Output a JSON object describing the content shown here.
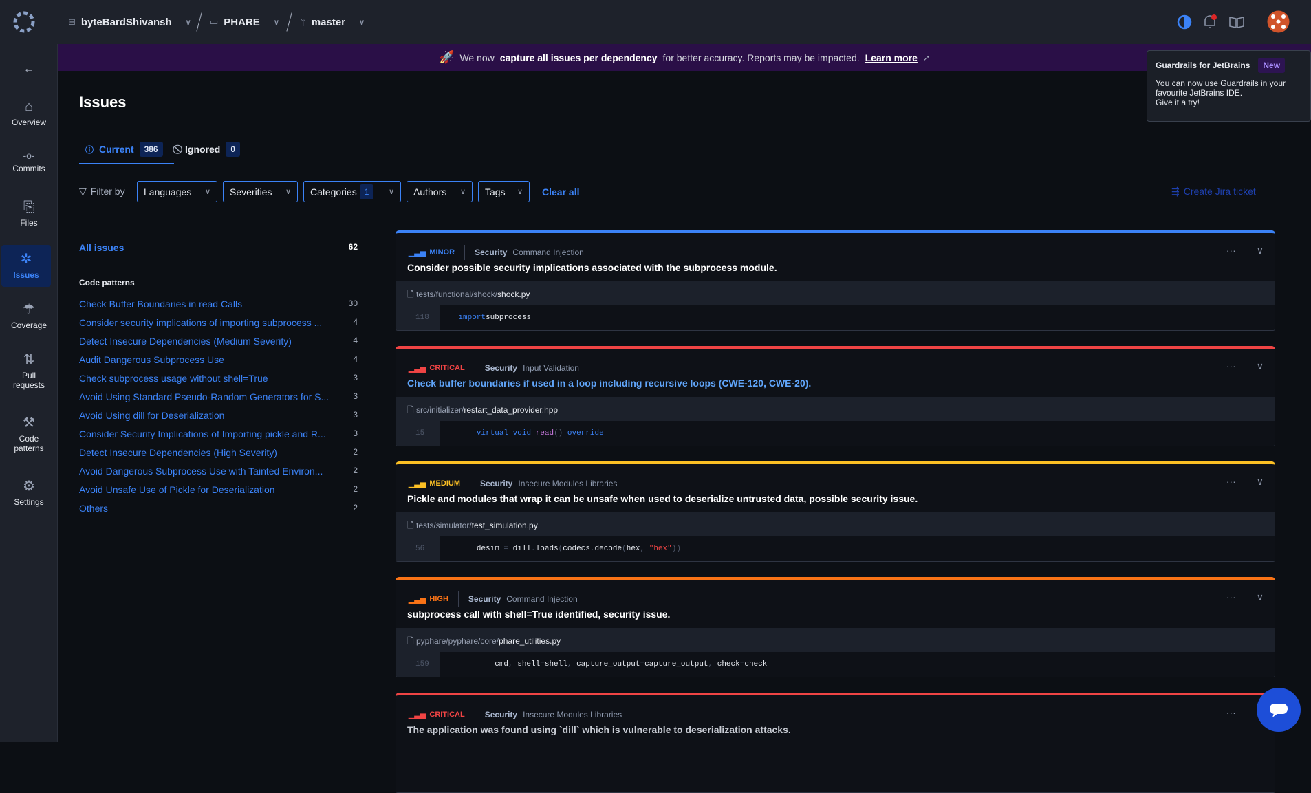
{
  "topbar": {
    "org": "byteBardShivansh",
    "repo": "PHARE",
    "branch": "master",
    "icons": [
      "logo-icon",
      "briefcase-icon",
      "folder-icon",
      "branch-icon",
      "theme-toggle-icon",
      "bell-icon",
      "book-icon",
      "avatar"
    ]
  },
  "sidebar": {
    "items": [
      {
        "label": "Overview",
        "icon": "⌂"
      },
      {
        "label": "Commits",
        "icon": "-o-"
      },
      {
        "label": "Files",
        "icon": "⎘"
      },
      {
        "label": "Issues",
        "icon": "✲"
      },
      {
        "label": "Coverage",
        "icon": "☂"
      },
      {
        "label": "Pull",
        "label2": "requests",
        "icon": "⇅"
      },
      {
        "label": "Code",
        "label2": "patterns",
        "icon": "⚒"
      },
      {
        "label": "Settings",
        "icon": "⚙"
      }
    ]
  },
  "banner": {
    "pre": "We now",
    "bold": "capture all issues per dependency",
    "post": "for better accuracy. Reports may be impacted.",
    "link": "Learn more"
  },
  "tooltip": {
    "title": "Guardrails for JetBrains",
    "badge": "New",
    "line1": "You can now use Guardrails in your",
    "line2": "favourite JetBrains IDE.",
    "line3": "Give it a try!"
  },
  "page": {
    "title": "Issues"
  },
  "tabs": [
    {
      "label": "Current",
      "count": "386"
    },
    {
      "label": "Ignored",
      "count": "0"
    }
  ],
  "filters": {
    "label": "Filter by",
    "items": [
      "Languages",
      "Severities",
      "Categories",
      "Authors",
      "Tags"
    ],
    "categories_count": "1",
    "clear": "Clear all",
    "jira": "Create Jira ticket"
  },
  "list": {
    "all_label": "All issues",
    "all_count": "62",
    "section": "Code patterns",
    "items": [
      {
        "label": "Check Buffer Boundaries in read Calls",
        "count": "30"
      },
      {
        "label": "Consider security implications of importing subprocess ...",
        "count": "4"
      },
      {
        "label": "Detect Insecure Dependencies (Medium Severity)",
        "count": "4"
      },
      {
        "label": "Audit Dangerous Subprocess Use",
        "count": "4"
      },
      {
        "label": "Check subprocess usage without shell=True",
        "count": "3"
      },
      {
        "label": "Avoid Using Standard Pseudo-Random Generators for S...",
        "count": "3"
      },
      {
        "label": "Avoid Using dill for Deserialization",
        "count": "3"
      },
      {
        "label": "Consider Security Implications of Importing pickle and R...",
        "count": "3"
      },
      {
        "label": "Detect Insecure Dependencies (High Severity)",
        "count": "2"
      },
      {
        "label": "Avoid Dangerous Subprocess Use with Tainted Environ...",
        "count": "2"
      },
      {
        "label": "Avoid Unsafe Use of Pickle for Deserialization",
        "count": "2"
      },
      {
        "label": "Others",
        "count": "2"
      }
    ]
  },
  "colors": {
    "minor": "#3b82f6",
    "critical": "#ef4444",
    "medium": "#fbbf24",
    "high": "#f97316",
    "accent": "#3b82f6",
    "banner": "#2a0f47"
  },
  "issues": [
    {
      "severity": "MINOR",
      "color": "#3b82f6",
      "category": "Security",
      "subcategory": "Command Injection",
      "title": "Consider possible security implications associated with the subprocess module.",
      "title_color": "#ffffff",
      "path": "tests/functional/shock/",
      "file": "shock.py",
      "line": "118",
      "code": [
        [
          "kw",
          "import"
        ],
        [
          "",
          "subprocess"
        ]
      ],
      "indent": "    "
    },
    {
      "severity": "CRITICAL",
      "color": "#ef4444",
      "category": "Security",
      "subcategory": "Input Validation",
      "title": "Check buffer boundaries if used in a loop including recursive loops (CWE-120, CWE-20).",
      "title_color": "#60a5fa",
      "path": "src/initializer/",
      "file": "restart_data_provider.hpp",
      "line": "15",
      "code": [
        [
          "kw",
          "virtual"
        ],
        [
          "",
          " "
        ],
        [
          "kw",
          "void"
        ],
        [
          "",
          " "
        ],
        [
          "fn",
          "read"
        ],
        [
          "pun",
          "()"
        ],
        [
          "",
          " "
        ],
        [
          "kw",
          "override"
        ]
      ],
      "indent": "        "
    },
    {
      "severity": "MEDIUM",
      "color": "#fbbf24",
      "category": "Security",
      "subcategory": "Insecure Modules Libraries",
      "title": "Pickle and modules that wrap it can be unsafe when used to deserialize untrusted data, possible security issue.",
      "title_color": "#ffffff",
      "path": "tests/simulator/",
      "file": "test_simulation.py",
      "line": "56",
      "code": [
        [
          "",
          "desim "
        ],
        [
          "pun",
          "="
        ],
        [
          "",
          " dill"
        ],
        [
          "pun",
          "."
        ],
        [
          "",
          "loads"
        ],
        [
          "pun",
          "("
        ],
        [
          "",
          "codecs"
        ],
        [
          "pun",
          "."
        ],
        [
          "",
          "decode"
        ],
        [
          "pun",
          "("
        ],
        [
          "",
          "hex"
        ],
        [
          "pun",
          ", "
        ],
        [
          "str",
          "\"hex\""
        ],
        [
          "pun",
          "))"
        ]
      ],
      "indent": "        "
    },
    {
      "severity": "HIGH",
      "color": "#f97316",
      "category": "Security",
      "subcategory": "Command Injection",
      "title": "subprocess call with shell=True identified, security issue.",
      "title_color": "#ffffff",
      "path": "pyphare/pyphare/core/",
      "file": "phare_utilities.py",
      "line": "159",
      "code": [
        [
          "",
          "cmd"
        ],
        [
          "pun",
          ", "
        ],
        [
          "",
          "shell"
        ],
        [
          "pun",
          "="
        ],
        [
          "",
          "shell"
        ],
        [
          "pun",
          ", "
        ],
        [
          "",
          "capture_output"
        ],
        [
          "pun",
          "="
        ],
        [
          "",
          "capture_output"
        ],
        [
          "pun",
          ", "
        ],
        [
          "",
          "check"
        ],
        [
          "pun",
          "="
        ],
        [
          "",
          "check"
        ]
      ],
      "indent": "            "
    },
    {
      "severity": "CRITICAL",
      "color": "#ef4444",
      "category": "Security",
      "subcategory": "Insecure Modules Libraries",
      "title": "The application was found using `dill` which is vulnerable to deserialization attacks.",
      "title_color": "#c8ccd4"
    }
  ]
}
